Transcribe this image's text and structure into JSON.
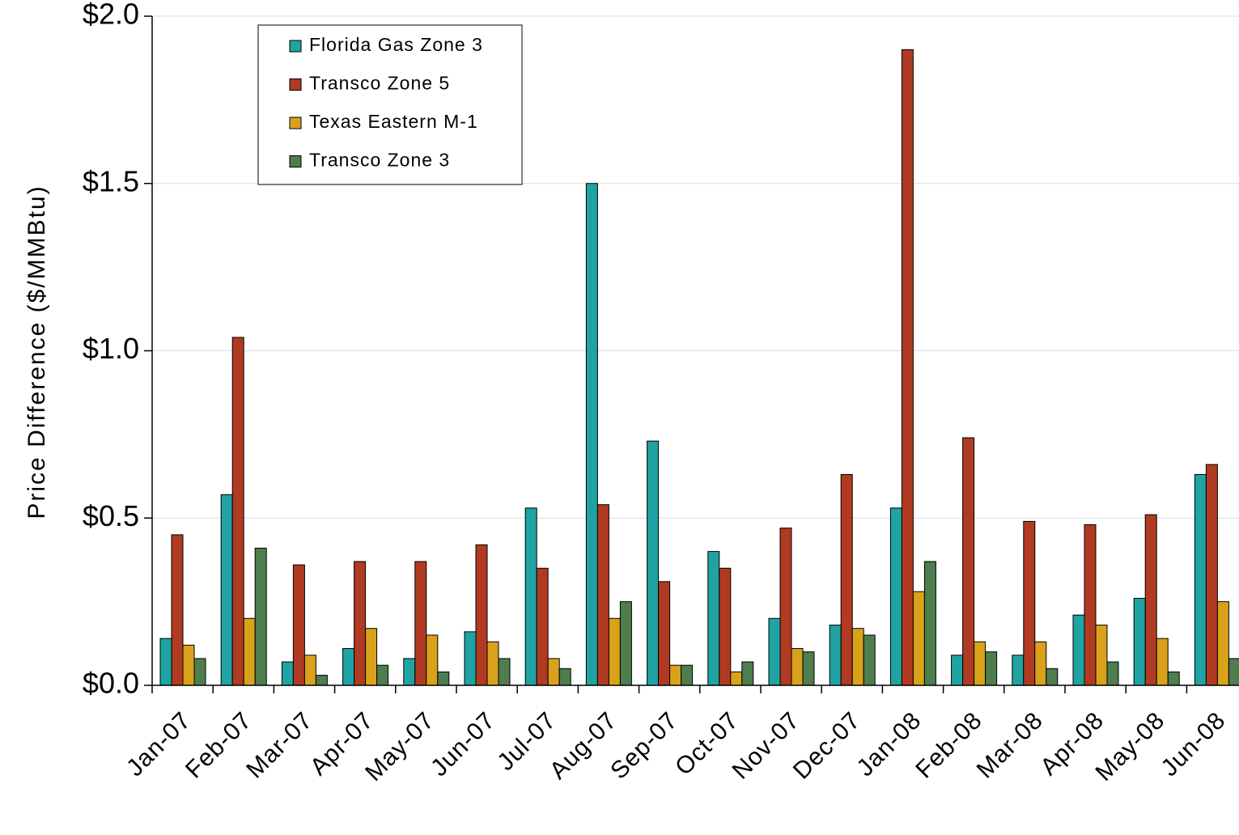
{
  "chart_data": {
    "type": "bar",
    "title": "",
    "xlabel": "",
    "ylabel": "Price Difference  ($/MMBtu)",
    "ylim": [
      0,
      2.0
    ],
    "yticks": [
      "$0.0",
      "$0.5",
      "$1.0",
      "$1.5",
      "$2.0"
    ],
    "ytick_values": [
      0,
      0.5,
      1.0,
      1.5,
      2.0
    ],
    "grid": true,
    "legend_position": "top-left",
    "categories": [
      "Jan-07",
      "Feb-07",
      "Mar-07",
      "Apr-07",
      "May-07",
      "Jun-07",
      "Jul-07",
      "Aug-07",
      "Sep-07",
      "Oct-07",
      "Nov-07",
      "Dec-07",
      "Jan-08",
      "Feb-08",
      "Mar-08",
      "Apr-08",
      "May-08",
      "Jun-08"
    ],
    "series": [
      {
        "name": "Florida Gas Zone 3",
        "color": "#1fa3a3",
        "values": [
          0.14,
          0.57,
          0.07,
          0.11,
          0.08,
          0.16,
          0.53,
          1.5,
          0.73,
          0.4,
          0.2,
          0.18,
          0.53,
          0.09,
          0.09,
          0.21,
          0.26,
          0.63
        ]
      },
      {
        "name": "Transco Zone 5",
        "color": "#b03a22",
        "values": [
          0.45,
          1.04,
          0.36,
          0.37,
          0.37,
          0.42,
          0.35,
          0.54,
          0.31,
          0.35,
          0.47,
          0.63,
          1.9,
          0.74,
          0.49,
          0.48,
          0.51,
          0.66
        ]
      },
      {
        "name": "Texas Eastern M-1",
        "color": "#d9a21a",
        "values": [
          0.12,
          0.2,
          0.09,
          0.17,
          0.15,
          0.13,
          0.08,
          0.2,
          0.06,
          0.04,
          0.11,
          0.17,
          0.28,
          0.13,
          0.13,
          0.18,
          0.14,
          0.25
        ]
      },
      {
        "name": "Transco Zone 3",
        "color": "#4e7d4e",
        "values": [
          0.08,
          0.41,
          0.03,
          0.06,
          0.04,
          0.08,
          0.05,
          0.25,
          0.06,
          0.07,
          0.1,
          0.15,
          0.37,
          0.1,
          0.05,
          0.07,
          0.04,
          0.08
        ]
      }
    ]
  }
}
